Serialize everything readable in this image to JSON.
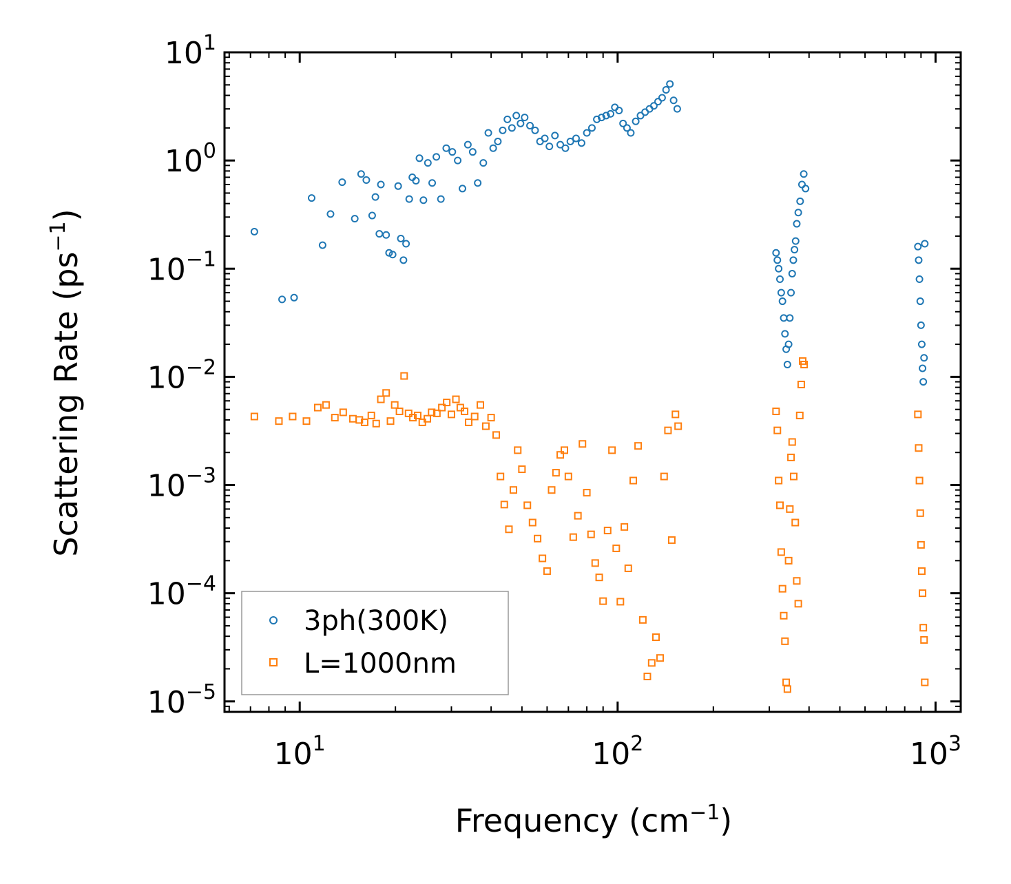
{
  "chart_data": {
    "type": "scatter",
    "title": "",
    "xlabel": "Frequency (cm",
    "xlabel_sup": "−1",
    "xlabel_end": ")",
    "ylabel": "Scattering Rate (ps",
    "ylabel_sup": "−1",
    "ylabel_end": ")",
    "xscale": "log",
    "yscale": "log",
    "xlim": [
      5.8,
      1200
    ],
    "ylim": [
      8e-06,
      10
    ],
    "x_ticks": [
      {
        "value": 10,
        "base": "10",
        "exp": "1"
      },
      {
        "value": 100,
        "base": "10",
        "exp": "2"
      },
      {
        "value": 1000,
        "base": "10",
        "exp": "3"
      }
    ],
    "y_ticks": [
      {
        "value": 10,
        "base": "10",
        "exp": "1"
      },
      {
        "value": 1,
        "base": "10",
        "exp": "0"
      },
      {
        "value": 0.1,
        "base": "10",
        "exp": "−1"
      },
      {
        "value": 0.01,
        "base": "10",
        "exp": "−2"
      },
      {
        "value": 0.001,
        "base": "10",
        "exp": "−3"
      },
      {
        "value": 0.0001,
        "base": "10",
        "exp": "−4"
      },
      {
        "value": 1e-05,
        "base": "10",
        "exp": "−5"
      }
    ],
    "legend_position": "lower-left",
    "series": [
      {
        "name": "3ph(300K)",
        "marker": "circle",
        "color": "#1f77b4",
        "x": [
          7.2,
          8.8,
          9.6,
          10.9,
          11.8,
          12.5,
          13.6,
          14.9,
          15.6,
          16.2,
          16.9,
          17.3,
          17.8,
          18.0,
          18.7,
          19.1,
          19.6,
          20.4,
          20.8,
          21.2,
          21.6,
          22.1,
          22.6,
          23.2,
          23.8,
          24.5,
          25.3,
          26.1,
          26.9,
          27.8,
          28.9,
          30.2,
          31.4,
          32.5,
          33.8,
          35.0,
          36.3,
          37.8,
          39.2,
          40.6,
          42.0,
          43.5,
          45.0,
          46.5,
          48.0,
          49.5,
          51.0,
          53.0,
          55.0,
          57.0,
          59.0,
          61.0,
          63.5,
          66.0,
          68.5,
          71.0,
          74.0,
          77.0,
          80.0,
          83.0,
          86.0,
          89.0,
          92.0,
          95.0,
          98.0,
          101.0,
          104.0,
          107.0,
          110.0,
          114.0,
          118.0,
          122.0,
          126.0,
          130.0,
          134.0,
          138.0,
          142.0,
          146.0,
          150.0,
          154.0,
          315.0,
          318.0,
          321.0,
          324.0,
          327.0,
          330.0,
          333.0,
          336.0,
          339.0,
          342.0,
          345.0,
          348.0,
          351.0,
          354.0,
          357.0,
          360.0,
          363.0,
          366.0,
          370.0,
          375.0,
          380.0,
          385.0,
          390.0,
          880.0,
          885.0,
          890.0,
          895.0,
          900.0,
          905.0,
          910.0,
          915.0,
          920.0,
          925.0
        ],
        "y": [
          0.22,
          0.052,
          0.054,
          0.45,
          0.165,
          0.32,
          0.63,
          0.29,
          0.75,
          0.66,
          0.31,
          0.46,
          0.21,
          0.6,
          0.205,
          0.14,
          0.135,
          0.58,
          0.19,
          0.12,
          0.17,
          0.44,
          0.7,
          0.65,
          1.05,
          0.43,
          0.95,
          0.62,
          1.08,
          0.44,
          1.3,
          1.2,
          1.0,
          0.55,
          1.4,
          1.2,
          0.62,
          0.95,
          1.8,
          1.3,
          1.5,
          1.9,
          2.4,
          2.0,
          2.6,
          2.2,
          2.5,
          2.1,
          1.9,
          1.5,
          1.6,
          1.35,
          1.7,
          1.4,
          1.3,
          1.5,
          1.6,
          1.45,
          1.8,
          2.0,
          2.4,
          2.5,
          2.6,
          2.7,
          3.1,
          2.9,
          2.2,
          2.0,
          1.8,
          2.3,
          2.6,
          2.8,
          3.0,
          3.2,
          3.5,
          3.8,
          4.5,
          5.1,
          3.6,
          3.0,
          0.14,
          0.12,
          0.1,
          0.08,
          0.06,
          0.05,
          0.035,
          0.025,
          0.018,
          0.013,
          0.02,
          0.035,
          0.06,
          0.09,
          0.12,
          0.15,
          0.18,
          0.26,
          0.33,
          0.42,
          0.6,
          0.75,
          0.55,
          0.16,
          0.12,
          0.08,
          0.05,
          0.03,
          0.02,
          0.012,
          0.009,
          0.015,
          0.17
        ]
      },
      {
        "name": "L=1000nm",
        "marker": "square",
        "color": "#ff7f0e",
        "x": [
          7.2,
          8.6,
          9.5,
          10.5,
          11.4,
          12.1,
          12.9,
          13.7,
          14.7,
          15.4,
          16.0,
          16.8,
          17.4,
          18.0,
          18.7,
          19.3,
          19.9,
          20.6,
          21.3,
          22.0,
          22.7,
          23.5,
          24.3,
          25.2,
          26.0,
          27.0,
          28.0,
          29.0,
          30.0,
          31.0,
          32.0,
          33.0,
          34.0,
          35.5,
          37.0,
          38.5,
          40.0,
          41.5,
          42.8,
          44.0,
          45.5,
          47.0,
          48.5,
          50.0,
          52.0,
          54.0,
          56.0,
          58.0,
          60.0,
          62.0,
          64.0,
          66.0,
          68.0,
          70.0,
          72.5,
          75.0,
          77.5,
          80.0,
          82.5,
          85.0,
          87.5,
          90.0,
          93.0,
          96.0,
          99.0,
          102.0,
          105.0,
          108.0,
          112.0,
          116.0,
          120.0,
          124.0,
          128.0,
          132.0,
          136.0,
          140.0,
          144.0,
          148.0,
          152.0,
          155.0,
          315.0,
          318.0,
          321.0,
          324.0,
          327.0,
          330.0,
          333.0,
          336.0,
          339.0,
          342.0,
          345.0,
          348.0,
          351.0,
          354.0,
          358.0,
          362.0,
          366.0,
          370.0,
          374.0,
          378.0,
          382.0,
          386.0,
          880.0,
          885.0,
          890.0,
          895.0,
          900.0,
          905.0,
          910.0,
          915.0,
          920.0,
          925.0
        ],
        "y": [
          0.0043,
          0.0039,
          0.0043,
          0.0039,
          0.0052,
          0.0055,
          0.0042,
          0.0047,
          0.0041,
          0.004,
          0.0038,
          0.0044,
          0.0037,
          0.0062,
          0.0071,
          0.0039,
          0.0055,
          0.0048,
          0.0102,
          0.0046,
          0.0042,
          0.0044,
          0.0038,
          0.0041,
          0.0047,
          0.0046,
          0.0052,
          0.0058,
          0.0045,
          0.0062,
          0.0052,
          0.0048,
          0.0038,
          0.0043,
          0.0055,
          0.0035,
          0.0042,
          0.0029,
          0.0012,
          0.00066,
          0.00039,
          0.0009,
          0.0021,
          0.0014,
          0.00065,
          0.00045,
          0.00032,
          0.00021,
          0.00016,
          0.0009,
          0.0013,
          0.0019,
          0.0021,
          0.0012,
          0.00033,
          0.00052,
          0.0024,
          0.00085,
          0.00035,
          0.00019,
          0.00014,
          8.45e-05,
          0.00038,
          0.0021,
          0.00026,
          8.35e-05,
          0.00041,
          0.00017,
          0.0011,
          0.0023,
          5.67e-05,
          1.7e-05,
          2.27e-05,
          3.92e-05,
          2.52e-05,
          0.0012,
          0.0032,
          0.00031,
          0.0045,
          0.0035,
          0.0048,
          0.0032,
          0.0011,
          0.00065,
          0.00024,
          0.00011,
          6.2e-05,
          3.6e-05,
          1.5e-05,
          1.3e-05,
          0.0002,
          0.0006,
          0.0018,
          0.0025,
          0.0012,
          0.00045,
          0.00013,
          8e-05,
          0.0044,
          0.0085,
          0.014,
          0.013,
          0.0045,
          0.0022,
          0.0011,
          0.00055,
          0.00028,
          0.00016,
          0.0001,
          4.8e-05,
          3.7e-05,
          1.5e-05
        ]
      }
    ]
  }
}
